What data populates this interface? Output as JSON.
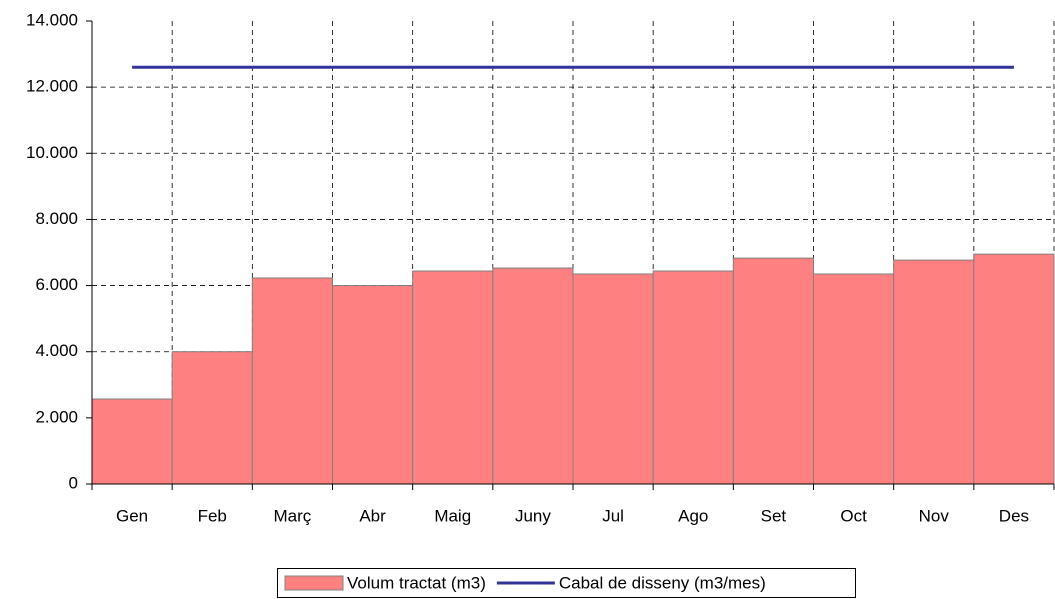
{
  "chart_data": {
    "type": "bar",
    "categories": [
      "Gen",
      "Feb",
      "Març",
      "Abr",
      "Maig",
      "Juny",
      "Jul",
      "Ago",
      "Set",
      "Oct",
      "Nov",
      "Des"
    ],
    "series": [
      {
        "name": "Volum tractat (m3)",
        "type": "bar",
        "color": "#ff8080",
        "values": [
          2570,
          4000,
          6230,
          6000,
          6440,
          6530,
          6350,
          6440,
          6830,
          6350,
          6770,
          6950
        ]
      },
      {
        "name": "Cabal de disseny (m3/mes)",
        "type": "line",
        "color": "#333399",
        "values": [
          12600,
          12600,
          12600,
          12600,
          12600,
          12600,
          12600,
          12600,
          12600,
          12600,
          12600,
          12600
        ]
      }
    ],
    "ylim": [
      0,
      14000
    ],
    "yticks": [
      0,
      {
        "value": 2000,
        "label": "2.000"
      },
      {
        "value": 4000,
        "label": "4.000"
      },
      {
        "value": 6000,
        "label": "6.000"
      },
      {
        "value": 8000,
        "label": "8.000"
      },
      {
        "value": 10000,
        "label": "10.000"
      },
      {
        "value": 12000,
        "label": "12.000"
      },
      {
        "value": 14000,
        "label": "14.000"
      }
    ],
    "grid": true,
    "legend": "bottom"
  }
}
